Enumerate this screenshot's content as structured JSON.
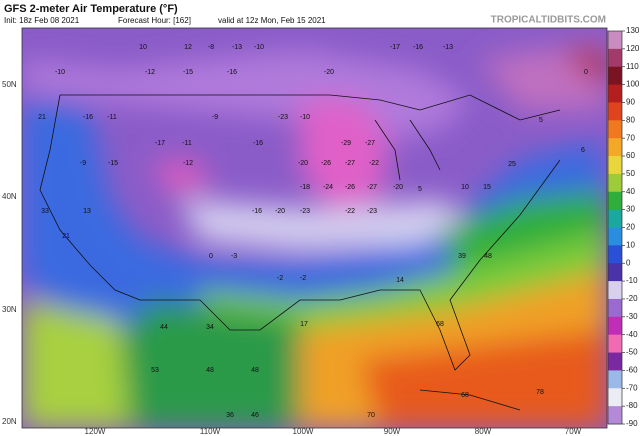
{
  "header": {
    "title": "GFS 2-meter Air Temperature (°F)",
    "init": "Init: 18z Feb 08 2021",
    "forecast_hour": "Forecast Hour: [162]",
    "valid": "valid at 12z Mon, Feb 15 2021",
    "site": "TROPICALTIDBITS.COM"
  },
  "latitude_labels": [
    "50N",
    "40N",
    "30N",
    "20N"
  ],
  "longitude_labels": [
    "120W",
    "110W",
    "100W",
    "90W",
    "80W",
    "70W"
  ],
  "colorbar": {
    "ticks": [
      130,
      120,
      110,
      100,
      90,
      80,
      70,
      60,
      50,
      40,
      30,
      20,
      10,
      0,
      -10,
      -20,
      -30,
      -40,
      -50,
      -60,
      -70,
      -80,
      -90
    ],
    "colors": [
      "#c98cc0",
      "#a23a6a",
      "#7a1422",
      "#b51e1e",
      "#e0441e",
      "#f0781e",
      "#f4a828",
      "#e8d63c",
      "#9ccc3a",
      "#2fae3c",
      "#1aa8a0",
      "#2a8ee0",
      "#2a50d8",
      "#4a32a8",
      "#d8d0ec",
      "#9a6ad0",
      "#c02eb8",
      "#f06ab4",
      "#7a2aa0",
      "#9ab8e8",
      "#ececf4",
      "#b48ad8",
      "#e890c8"
    ]
  },
  "temperature_labels": [
    10,
    12,
    -8,
    -13,
    -10,
    -17,
    -16,
    -13,
    -10,
    -12,
    -15,
    -16,
    -20,
    0,
    21,
    -16,
    -11,
    -9,
    -23,
    -10,
    -29,
    -27,
    -17,
    -11,
    -16,
    -9,
    -15,
    -12,
    -20,
    -26,
    -27,
    -22,
    -18,
    -24,
    -26,
    -27,
    -20,
    -16,
    -20,
    -23,
    -22,
    -23,
    21,
    33,
    13,
    0,
    -3,
    -2,
    -2,
    14,
    39,
    48,
    44,
    34,
    17,
    68,
    53,
    48,
    48,
    70,
    68,
    78,
    36,
    46,
    5,
    10,
    15,
    25,
    6,
    5
  ]
}
